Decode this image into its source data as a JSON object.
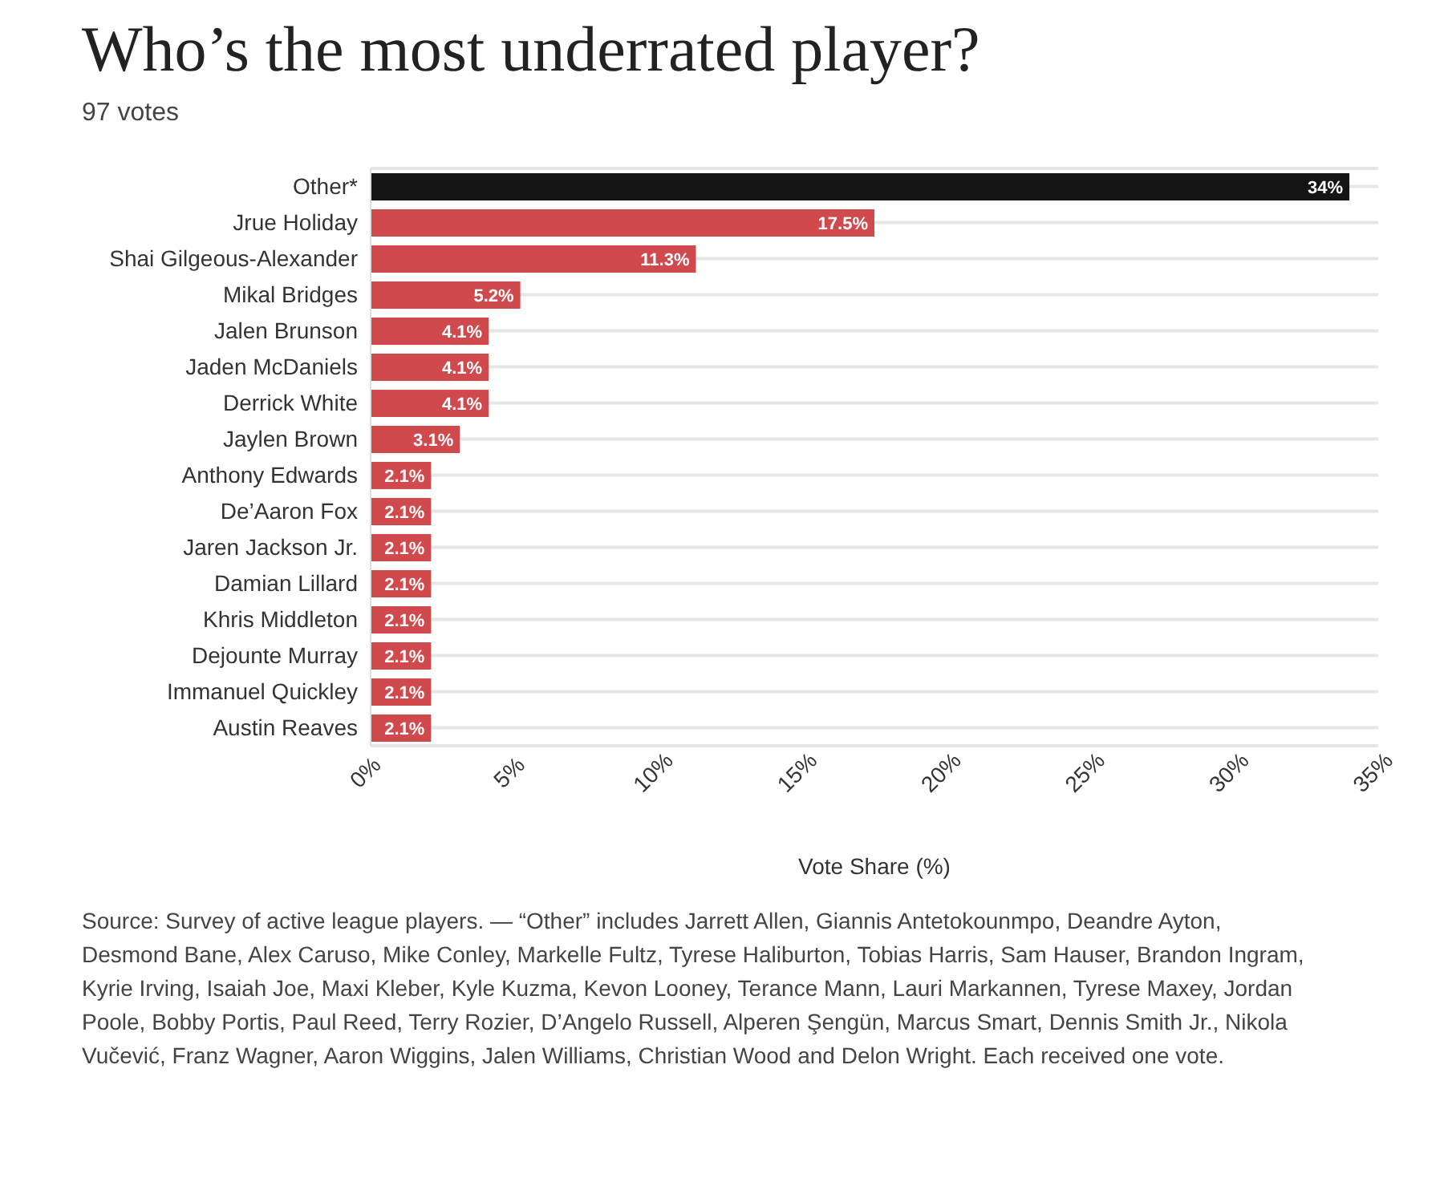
{
  "chart_data": {
    "type": "bar",
    "orientation": "horizontal",
    "title": "Who’s the most underrated player?",
    "subtitle": "97 votes",
    "categories": [
      "Other*",
      "Jrue Holiday",
      "Shai Gilgeous-Alexander",
      "Mikal Bridges",
      "Jalen Brunson",
      "Jaden McDaniels",
      "Derrick White",
      "Jaylen Brown",
      "Anthony Edwards",
      "De’Aaron Fox",
      "Jaren Jackson Jr.",
      "Damian Lillard",
      "Khris Middleton",
      "Dejounte Murray",
      "Immanuel Quickley",
      "Austin Reaves"
    ],
    "values": [
      34,
      17.5,
      11.3,
      5.2,
      4.1,
      4.1,
      4.1,
      3.1,
      2.1,
      2.1,
      2.1,
      2.1,
      2.1,
      2.1,
      2.1,
      2.1
    ],
    "value_labels": [
      "34%",
      "17.5%",
      "11.3%",
      "5.2%",
      "4.1%",
      "4.1%",
      "4.1%",
      "3.1%",
      "2.1%",
      "2.1%",
      "2.1%",
      "2.1%",
      "2.1%",
      "2.1%",
      "2.1%",
      "2.1%"
    ],
    "colors": [
      "#141414",
      "#d04a4d",
      "#d04a4d",
      "#d04a4d",
      "#d04a4d",
      "#d04a4d",
      "#d04a4d",
      "#d04a4d",
      "#d04a4d",
      "#d04a4d",
      "#d04a4d",
      "#d04a4d",
      "#d04a4d",
      "#d04a4d",
      "#d04a4d",
      "#d04a4d"
    ],
    "xlabel": "Vote Share (%)",
    "xlim": [
      0,
      35
    ],
    "xticks": [
      {
        "value": 0,
        "label": "0%"
      },
      {
        "value": 5,
        "label": "5%"
      },
      {
        "value": 10,
        "label": "10%"
      },
      {
        "value": 15,
        "label": "15%"
      },
      {
        "value": 20,
        "label": "20%"
      },
      {
        "value": 25,
        "label": "25%"
      },
      {
        "value": 30,
        "label": "30%"
      },
      {
        "value": 35,
        "label": "35%"
      }
    ],
    "grid": "y",
    "legend": false,
    "annotations": [
      "Source: Survey of active league players. — “Other” includes Jarrett Allen, Giannis Antetokounmpo, Deandre Ayton, Desmond Bane, Alex Caruso, Mike Conley, Markelle Fultz, Tyrese Haliburton, Tobias Harris, Sam Hauser, Brandon Ingram, Kyrie Irving, Isaiah Joe, Maxi Kleber, Kyle Kuzma, Kevon Looney, Terance Mann, Lauri Markannen, Tyrese Maxey, Jordan Poole, Bobby Portis, Paul Reed, Terry Rozier, D’Angelo Russell, Alperen Şengün, Marcus Smart, Dennis Smith Jr., Nikola Vučević, Franz Wagner, Aaron Wiggins, Jalen Williams, Christian Wood and Delon Wright. Each received one vote."
    ]
  }
}
